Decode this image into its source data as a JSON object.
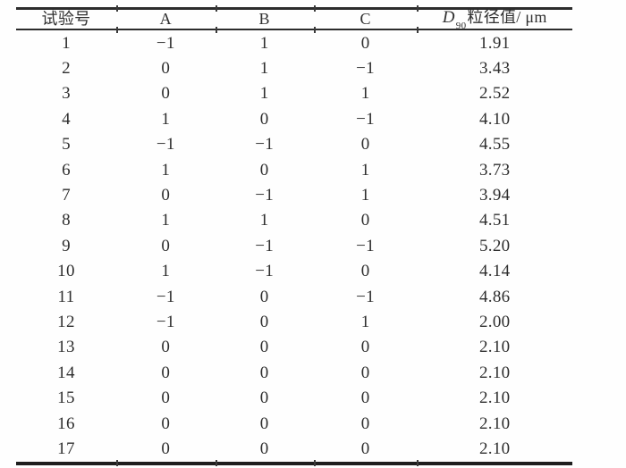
{
  "colors": {
    "text": "#2e2e2e",
    "rule": "#2c2c2c",
    "rule_bottom": "#1e1e1e",
    "background": "#fefefe"
  },
  "table": {
    "header": {
      "test_no": "试验号",
      "a": "A",
      "b": "B",
      "c": "C",
      "d90_symbol": "D",
      "d90_subscript": "90",
      "d90_rest": "粒径值/ μm"
    },
    "rows": [
      [
        "1",
        "−1",
        "1",
        "0",
        "1.91"
      ],
      [
        "2",
        "0",
        "1",
        "−1",
        "3.43"
      ],
      [
        "3",
        "0",
        "1",
        "1",
        "2.52"
      ],
      [
        "4",
        "1",
        "0",
        "−1",
        "4.10"
      ],
      [
        "5",
        "−1",
        "−1",
        "0",
        "4.55"
      ],
      [
        "6",
        "1",
        "0",
        "1",
        "3.73"
      ],
      [
        "7",
        "0",
        "−1",
        "1",
        "3.94"
      ],
      [
        "8",
        "1",
        "1",
        "0",
        "4.51"
      ],
      [
        "9",
        "0",
        "−1",
        "−1",
        "5.20"
      ],
      [
        "10",
        "1",
        "−1",
        "0",
        "4.14"
      ],
      [
        "11",
        "−1",
        "0",
        "−1",
        "4.86"
      ],
      [
        "12",
        "−1",
        "0",
        "1",
        "2.00"
      ],
      [
        "13",
        "0",
        "0",
        "0",
        "2.10"
      ],
      [
        "14",
        "0",
        "0",
        "0",
        "2.10"
      ],
      [
        "15",
        "0",
        "0",
        "0",
        "2.10"
      ],
      [
        "16",
        "0",
        "0",
        "0",
        "2.10"
      ],
      [
        "17",
        "0",
        "0",
        "0",
        "2.10"
      ]
    ]
  },
  "chart_data": {
    "type": "table",
    "title": "",
    "columns": [
      "试验号",
      "A",
      "B",
      "C",
      "D90粒径值/μm"
    ],
    "rows": [
      [
        1,
        -1,
        1,
        0,
        1.91
      ],
      [
        2,
        0,
        1,
        -1,
        3.43
      ],
      [
        3,
        0,
        1,
        1,
        2.52
      ],
      [
        4,
        1,
        0,
        -1,
        4.1
      ],
      [
        5,
        -1,
        -1,
        0,
        4.55
      ],
      [
        6,
        1,
        0,
        1,
        3.73
      ],
      [
        7,
        0,
        -1,
        1,
        3.94
      ],
      [
        8,
        1,
        1,
        0,
        4.51
      ],
      [
        9,
        0,
        -1,
        -1,
        5.2
      ],
      [
        10,
        1,
        -1,
        0,
        4.14
      ],
      [
        11,
        -1,
        0,
        -1,
        4.86
      ],
      [
        12,
        -1,
        0,
        1,
        2.0
      ],
      [
        13,
        0,
        0,
        0,
        2.1
      ],
      [
        14,
        0,
        0,
        0,
        2.1
      ],
      [
        15,
        0,
        0,
        0,
        2.1
      ],
      [
        16,
        0,
        0,
        0,
        2.1
      ],
      [
        17,
        0,
        0,
        0,
        2.1
      ]
    ]
  }
}
